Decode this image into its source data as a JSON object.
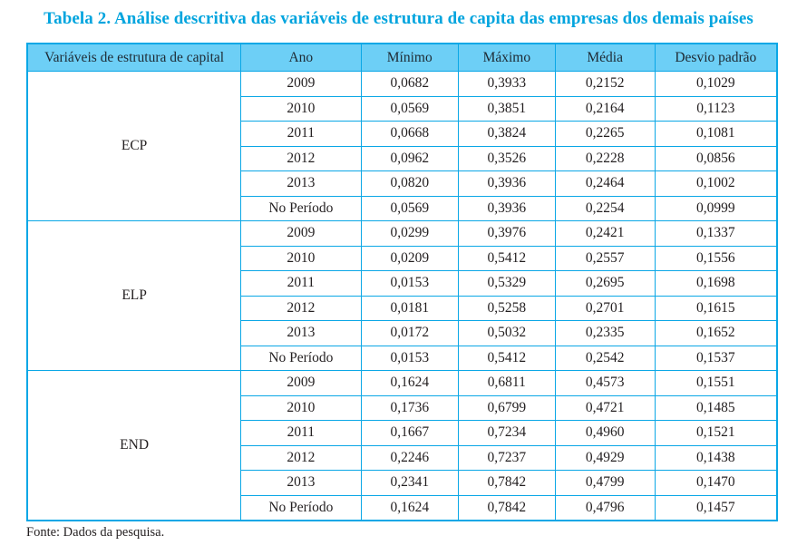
{
  "title": "Tabela 2. Análise descritiva das variáveis de estrutura de capita das empresas dos demais países",
  "source_note": "Fonte: Dados da pesquisa.",
  "colors": {
    "title_text": "#00a4de",
    "table_border": "#0aa7e6",
    "header_background": "#6dcff6",
    "body_text": "#231f20",
    "page_background": "#ffffff"
  },
  "table": {
    "headers": [
      "Variáveis de estrutura de capital",
      "Ano",
      "Mínimo",
      "Máximo",
      "Média",
      "Desvio padrão"
    ],
    "groups": [
      {
        "label": "ECP",
        "rows": [
          [
            "2009",
            "0,0682",
            "0,3933",
            "0,2152",
            "0,1029"
          ],
          [
            "2010",
            "0,0569",
            "0,3851",
            "0,2164",
            "0,1123"
          ],
          [
            "2011",
            "0,0668",
            "0,3824",
            "0,2265",
            "0,1081"
          ],
          [
            "2012",
            "0,0962",
            "0,3526",
            "0,2228",
            "0,0856"
          ],
          [
            "2013",
            "0,0820",
            "0,3936",
            "0,2464",
            "0,1002"
          ],
          [
            "No Período",
            "0,0569",
            "0,3936",
            "0,2254",
            "0,0999"
          ]
        ]
      },
      {
        "label": "ELP",
        "rows": [
          [
            "2009",
            "0,0299",
            "0,3976",
            "0,2421",
            "0,1337"
          ],
          [
            "2010",
            "0,0209",
            "0,5412",
            "0,2557",
            "0,1556"
          ],
          [
            "2011",
            "0,0153",
            "0,5329",
            "0,2695",
            "0,1698"
          ],
          [
            "2012",
            "0,0181",
            "0,5258",
            "0,2701",
            "0,1615"
          ],
          [
            "2013",
            "0,0172",
            "0,5032",
            "0,2335",
            "0,1652"
          ],
          [
            "No Período",
            "0,0153",
            "0,5412",
            "0,2542",
            "0,1537"
          ]
        ]
      },
      {
        "label": "END",
        "rows": [
          [
            "2009",
            "0,1624",
            "0,6811",
            "0,4573",
            "0,1551"
          ],
          [
            "2010",
            "0,1736",
            "0,6799",
            "0,4721",
            "0,1485"
          ],
          [
            "2011",
            "0,1667",
            "0,7234",
            "0,4960",
            "0,1521"
          ],
          [
            "2012",
            "0,2246",
            "0,7237",
            "0,4929",
            "0,1438"
          ],
          [
            "2013",
            "0,2341",
            "0,7842",
            "0,4799",
            "0,1470"
          ],
          [
            "No Período",
            "0,1624",
            "0,7842",
            "0,4796",
            "0,1457"
          ]
        ]
      }
    ]
  }
}
